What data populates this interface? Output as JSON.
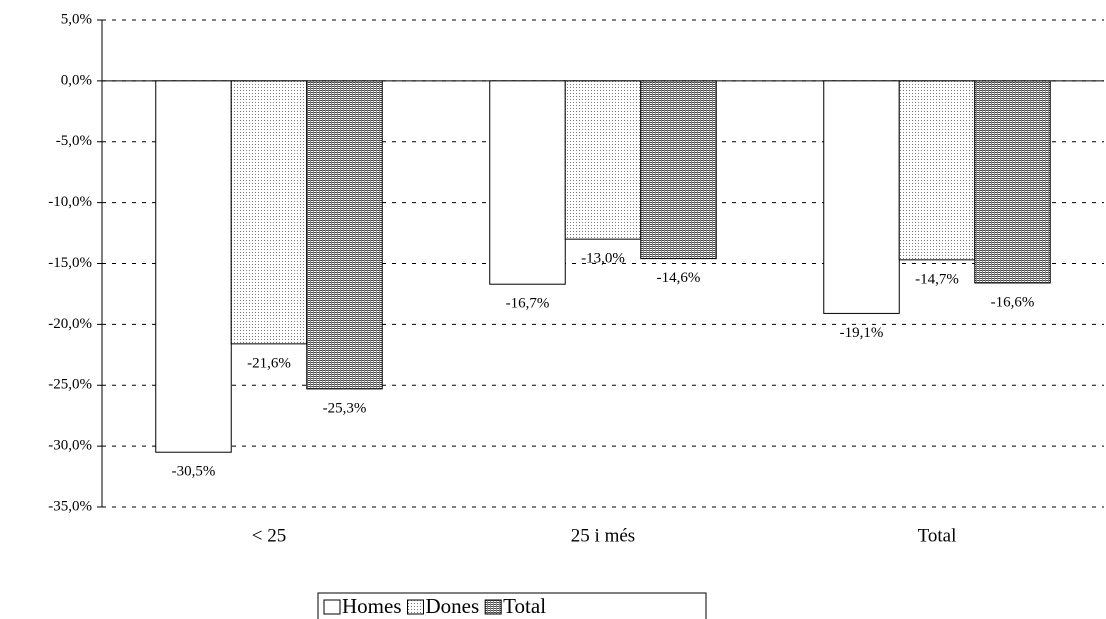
{
  "chart_data": {
    "type": "bar",
    "categories": [
      "< 25",
      "25 i més",
      "Total"
    ],
    "series": [
      {
        "name": "Homes",
        "values": [
          -30.5,
          -16.7,
          -19.1
        ],
        "value_labels": [
          "-30,5%",
          "-16,7%",
          "-19,1%"
        ]
      },
      {
        "name": "Dones",
        "values": [
          -21.6,
          -13.0,
          -14.7
        ],
        "value_labels": [
          "-21,6%",
          "-13,0%",
          "-14,7%"
        ]
      },
      {
        "name": "Total",
        "values": [
          -25.3,
          -14.6,
          -16.6
        ],
        "value_labels": [
          "-25,3%",
          "-14,6%",
          "-16,6%"
        ]
      }
    ],
    "ylim": [
      -35,
      5
    ],
    "yticks": [
      {
        "value": 5,
        "label": "5,0%"
      },
      {
        "value": 0,
        "label": "0,0%"
      },
      {
        "value": -5,
        "label": "-5,0%"
      },
      {
        "value": -10,
        "label": "-10,0%"
      },
      {
        "value": -15,
        "label": "-15,0%"
      },
      {
        "value": -20,
        "label": "-20,0%"
      },
      {
        "value": -25,
        "label": "-25,0%"
      },
      {
        "value": -30,
        "label": "-30,0%"
      },
      {
        "value": -35,
        "label": "-35,0%"
      }
    ],
    "grid": true,
    "legend": "bottom"
  }
}
